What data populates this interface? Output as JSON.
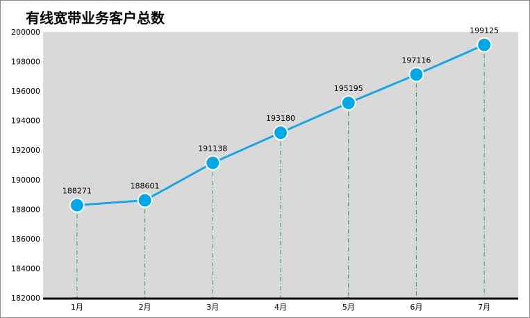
{
  "chart_data": {
    "type": "line",
    "title": "有线宽带业务客户总数",
    "xlabel": "",
    "ylabel": "",
    "categories": [
      "1月",
      "2月",
      "3月",
      "4月",
      "5月",
      "6月",
      "7月"
    ],
    "series": [
      {
        "values": [
          188271,
          188601,
          191138,
          193180,
          195195,
          197116,
          199125
        ]
      }
    ],
    "ylim": [
      182000,
      200000
    ],
    "yticks": [
      "182000",
      "184000",
      "186000",
      "188000",
      "190000",
      "192000",
      "194000",
      "196000",
      "198000",
      "200000"
    ],
    "grid": false,
    "legend": "none",
    "colors": {
      "plot_background": "#d9d9d9",
      "line": "#1aa6e6",
      "marker_fill": "#00a8e8",
      "marker_stroke": "#ffffff",
      "drop_line": "#2e9e4f",
      "axis": "#000000"
    }
  }
}
